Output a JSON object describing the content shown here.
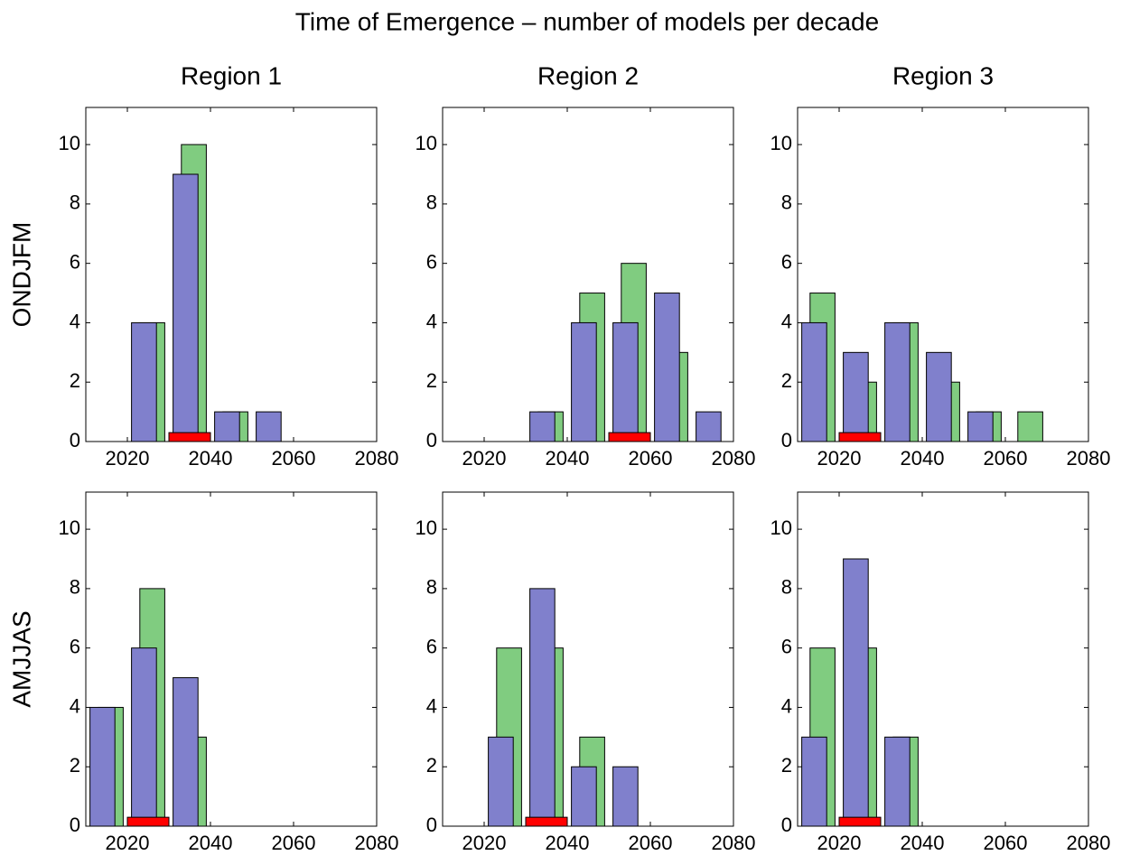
{
  "title": "Time of Emergence – number of models per decade",
  "chart_data": [
    {
      "type": "bar",
      "title": "Region 1",
      "ylabel": "ONDJFM",
      "x": [
        2010,
        2020,
        2030,
        2040,
        2050,
        2060,
        2070
      ],
      "series": [
        {
          "color": "#80cc80",
          "values": [
            0,
            4,
            10,
            1,
            0,
            0,
            0
          ]
        },
        {
          "color": "#8080cc",
          "values": [
            0,
            4,
            9,
            1,
            1,
            0,
            0
          ]
        }
      ],
      "range": {
        "x": [
          2030,
          2040
        ],
        "height": 0.3,
        "color": "#ff0000"
      },
      "xlim": [
        2010,
        2080
      ],
      "xticks": [
        2020,
        2040,
        2060,
        2080
      ],
      "ylim": [
        0,
        11.25
      ],
      "yticks": [
        0,
        2,
        4,
        6,
        8,
        10
      ]
    },
    {
      "type": "bar",
      "title": "Region 2",
      "x": [
        2010,
        2020,
        2030,
        2040,
        2050,
        2060,
        2070
      ],
      "series": [
        {
          "color": "#80cc80",
          "values": [
            0,
            0,
            1,
            5,
            6,
            3,
            0
          ]
        },
        {
          "color": "#8080cc",
          "values": [
            0,
            0,
            1,
            4,
            4,
            5,
            1
          ]
        }
      ],
      "range": {
        "x": [
          2050,
          2060
        ],
        "height": 0.3,
        "color": "#ff0000"
      },
      "xlim": [
        2010,
        2080
      ],
      "xticks": [
        2020,
        2040,
        2060,
        2080
      ],
      "ylim": [
        0,
        11.25
      ],
      "yticks": [
        0,
        2,
        4,
        6,
        8,
        10
      ]
    },
    {
      "type": "bar",
      "title": "Region 3",
      "x": [
        2010,
        2020,
        2030,
        2040,
        2050,
        2060,
        2070
      ],
      "series": [
        {
          "color": "#80cc80",
          "values": [
            5,
            2,
            4,
            2,
            1,
            1,
            0
          ]
        },
        {
          "color": "#8080cc",
          "values": [
            4,
            3,
            4,
            3,
            1,
            0,
            0
          ]
        }
      ],
      "range": {
        "x": [
          2020,
          2030
        ],
        "height": 0.3,
        "color": "#ff0000"
      },
      "xlim": [
        2010,
        2080
      ],
      "xticks": [
        2020,
        2040,
        2060,
        2080
      ],
      "ylim": [
        0,
        11.25
      ],
      "yticks": [
        0,
        2,
        4,
        6,
        8,
        10
      ]
    },
    {
      "type": "bar",
      "ylabel": "AMJJAS",
      "x": [
        2010,
        2020,
        2030,
        2040,
        2050,
        2060,
        2070
      ],
      "series": [
        {
          "color": "#80cc80",
          "values": [
            4,
            8,
            3,
            0,
            0,
            0,
            0
          ]
        },
        {
          "color": "#8080cc",
          "values": [
            4,
            6,
            5,
            0,
            0,
            0,
            0
          ]
        }
      ],
      "range": {
        "x": [
          2020,
          2030
        ],
        "height": 0.3,
        "color": "#ff0000"
      },
      "xlim": [
        2010,
        2080
      ],
      "xticks": [
        2020,
        2040,
        2060,
        2080
      ],
      "ylim": [
        0,
        11.25
      ],
      "yticks": [
        0,
        2,
        4,
        6,
        8,
        10
      ]
    },
    {
      "type": "bar",
      "x": [
        2010,
        2020,
        2030,
        2040,
        2050,
        2060,
        2070
      ],
      "series": [
        {
          "color": "#80cc80",
          "values": [
            0,
            6,
            6,
            3,
            0,
            0,
            0
          ]
        },
        {
          "color": "#8080cc",
          "values": [
            0,
            3,
            8,
            2,
            2,
            0,
            0
          ]
        }
      ],
      "range": {
        "x": [
          2030,
          2040
        ],
        "height": 0.3,
        "color": "#ff0000"
      },
      "xlim": [
        2010,
        2080
      ],
      "xticks": [
        2020,
        2040,
        2060,
        2080
      ],
      "ylim": [
        0,
        11.25
      ],
      "yticks": [
        0,
        2,
        4,
        6,
        8,
        10
      ]
    },
    {
      "type": "bar",
      "x": [
        2010,
        2020,
        2030,
        2040,
        2050,
        2060,
        2070
      ],
      "series": [
        {
          "color": "#80cc80",
          "values": [
            6,
            6,
            3,
            0,
            0,
            0,
            0
          ]
        },
        {
          "color": "#8080cc",
          "values": [
            3,
            9,
            3,
            0,
            0,
            0,
            0
          ]
        }
      ],
      "range": {
        "x": [
          2020,
          2030
        ],
        "height": 0.3,
        "color": "#ff0000"
      },
      "xlim": [
        2010,
        2080
      ],
      "xticks": [
        2020,
        2040,
        2060,
        2080
      ],
      "ylim": [
        0,
        11.25
      ],
      "yticks": [
        0,
        2,
        4,
        6,
        8,
        10
      ]
    }
  ]
}
